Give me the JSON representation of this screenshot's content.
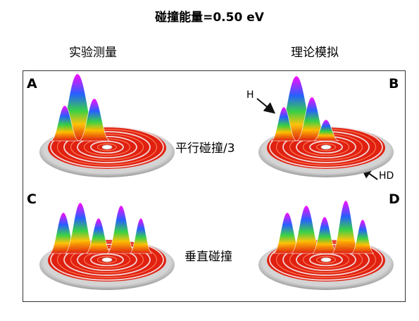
{
  "title": "碰撞能量=0.50 eV",
  "column_headers": {
    "left": "实验测量",
    "right": "理论模拟"
  },
  "panels": [
    {
      "letter": "A",
      "column": "left",
      "row": "top"
    },
    {
      "letter": "B",
      "column": "right",
      "row": "top"
    },
    {
      "letter": "C",
      "column": "left",
      "row": "bottom"
    },
    {
      "letter": "D",
      "column": "right",
      "row": "bottom"
    }
  ],
  "row_labels": {
    "top": "平行碰撞/3",
    "bottom": "垂直碰撞"
  },
  "annotations": {
    "h": "H",
    "hd": "HD"
  },
  "colors": {
    "frame": "#333333",
    "ring_base": "#e02010",
    "disk": "#c8c8c8",
    "peak_top": "#ff00ff",
    "peak_mid": "#1e5aff",
    "peak_low": "#20d040"
  }
}
